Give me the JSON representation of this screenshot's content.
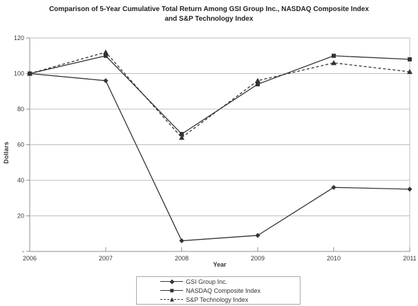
{
  "title": {
    "line1": "Comparison of 5-Year Cumulative Total Return Among GSI Group Inc., NASDAQ Composite Index",
    "line2": "and S&P Technology Index"
  },
  "chart_data": {
    "type": "line",
    "x": [
      "2006",
      "2007",
      "2008",
      "2009",
      "2010",
      "2011"
    ],
    "series": [
      {
        "name": "GSI Group Inc.",
        "marker": "diamond",
        "line_style": "solid",
        "values": [
          100,
          96,
          6,
          9,
          36,
          35
        ]
      },
      {
        "name": "NASDAQ Composite Index",
        "marker": "square",
        "line_style": "solid",
        "values": [
          100,
          110,
          66,
          94,
          110,
          108
        ]
      },
      {
        "name": "S&P Technology Index",
        "marker": "triangle",
        "line_style": "dashed",
        "values": [
          100,
          112,
          64,
          96,
          106,
          101
        ]
      }
    ],
    "xlabel": "Year",
    "ylabel": "Dollars",
    "ylim": [
      0,
      120
    ],
    "ytick_step": 20,
    "ytick_labels": [
      "-",
      "20",
      "40",
      "60",
      "80",
      "100",
      "120"
    ],
    "grid": true,
    "legend_position": "bottom-center",
    "colors": {
      "series": "#333333",
      "gridline": "#bdbdbd",
      "axis": "#8c8c8c"
    }
  }
}
